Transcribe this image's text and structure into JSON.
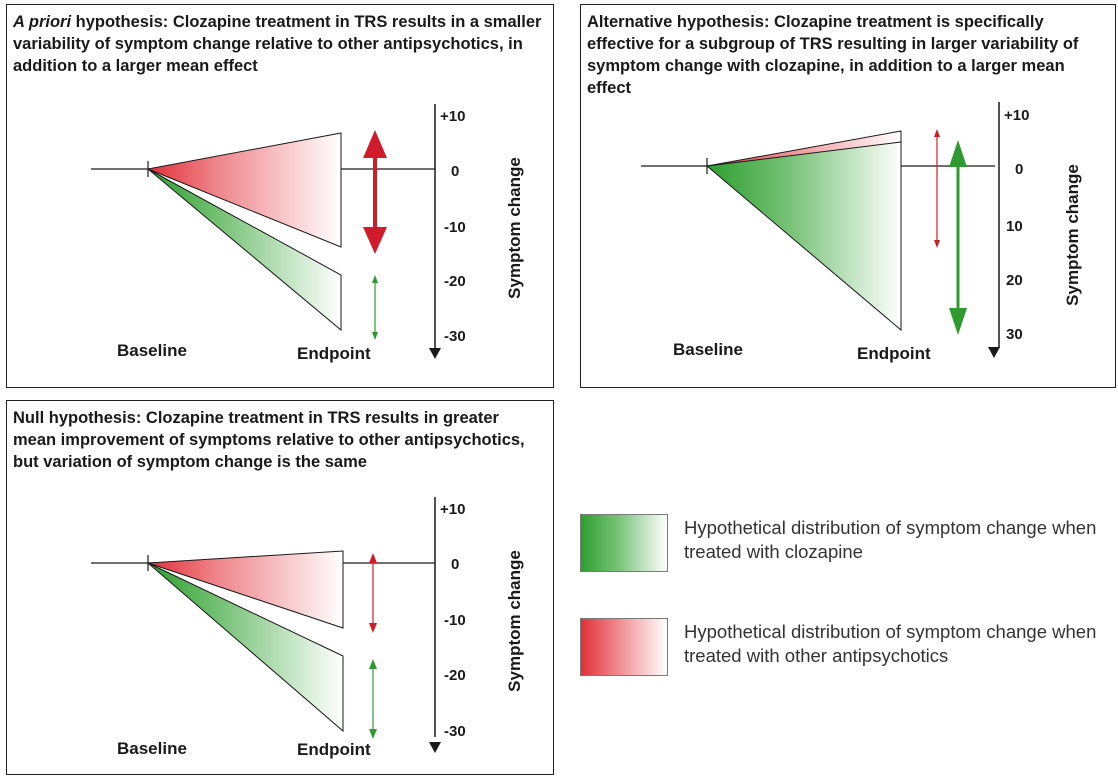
{
  "colors": {
    "clozapine": "#2e9e2e",
    "other": "#e03039",
    "arrow_red": "#d01c2a",
    "arrow_green": "#2f9a2f",
    "line": "#1a1a1a"
  },
  "panels": {
    "a": {
      "title_em": "A priori",
      "title_rest": " hypothesis: Clozapine treatment in TRS results in a smaller variability of symptom change relative to other antipsychotics, in addition to a larger mean effect",
      "ticks": [
        "+10",
        "0",
        "-10",
        "-20",
        "-30"
      ],
      "ylabel": "Symptom change",
      "baseline_label": "Baseline",
      "endpoint_label": "Endpoint",
      "other_range": [
        7,
        -14
      ],
      "clozapine_range": [
        -19,
        -30
      ]
    },
    "b": {
      "title": "Alternative hypothesis: Clozapine treatment is specifically effective for a subgroup of TRS resulting in larger variability of symptom change with clozapine, in addition to a larger mean effect",
      "ticks": [
        "+10",
        "0",
        "10",
        "20",
        "30"
      ],
      "ylabel": "Symptom change",
      "baseline_label": "Baseline",
      "endpoint_label": "Endpoint",
      "other_range": [
        7,
        -14
      ],
      "clozapine_range": [
        5,
        -30
      ]
    },
    "c": {
      "title": "Null hypothesis: Clozapine treatment in TRS results in greater mean improvement of symptoms relative to other antipsychotics, but variation of symptom change is the same",
      "ticks": [
        "+10",
        "0",
        "-10",
        "-20",
        "-30"
      ],
      "ylabel": "Symptom change",
      "baseline_label": "Baseline",
      "endpoint_label": "Endpoint",
      "other_range": [
        2,
        -12
      ],
      "clozapine_range": [
        -16,
        -30
      ]
    }
  },
  "legend": {
    "clozapine": "Hypothetical distribution of symptom change when treated with clozapine",
    "other": "Hypothetical distribution of symptom change when treated with other antipsychotics"
  }
}
